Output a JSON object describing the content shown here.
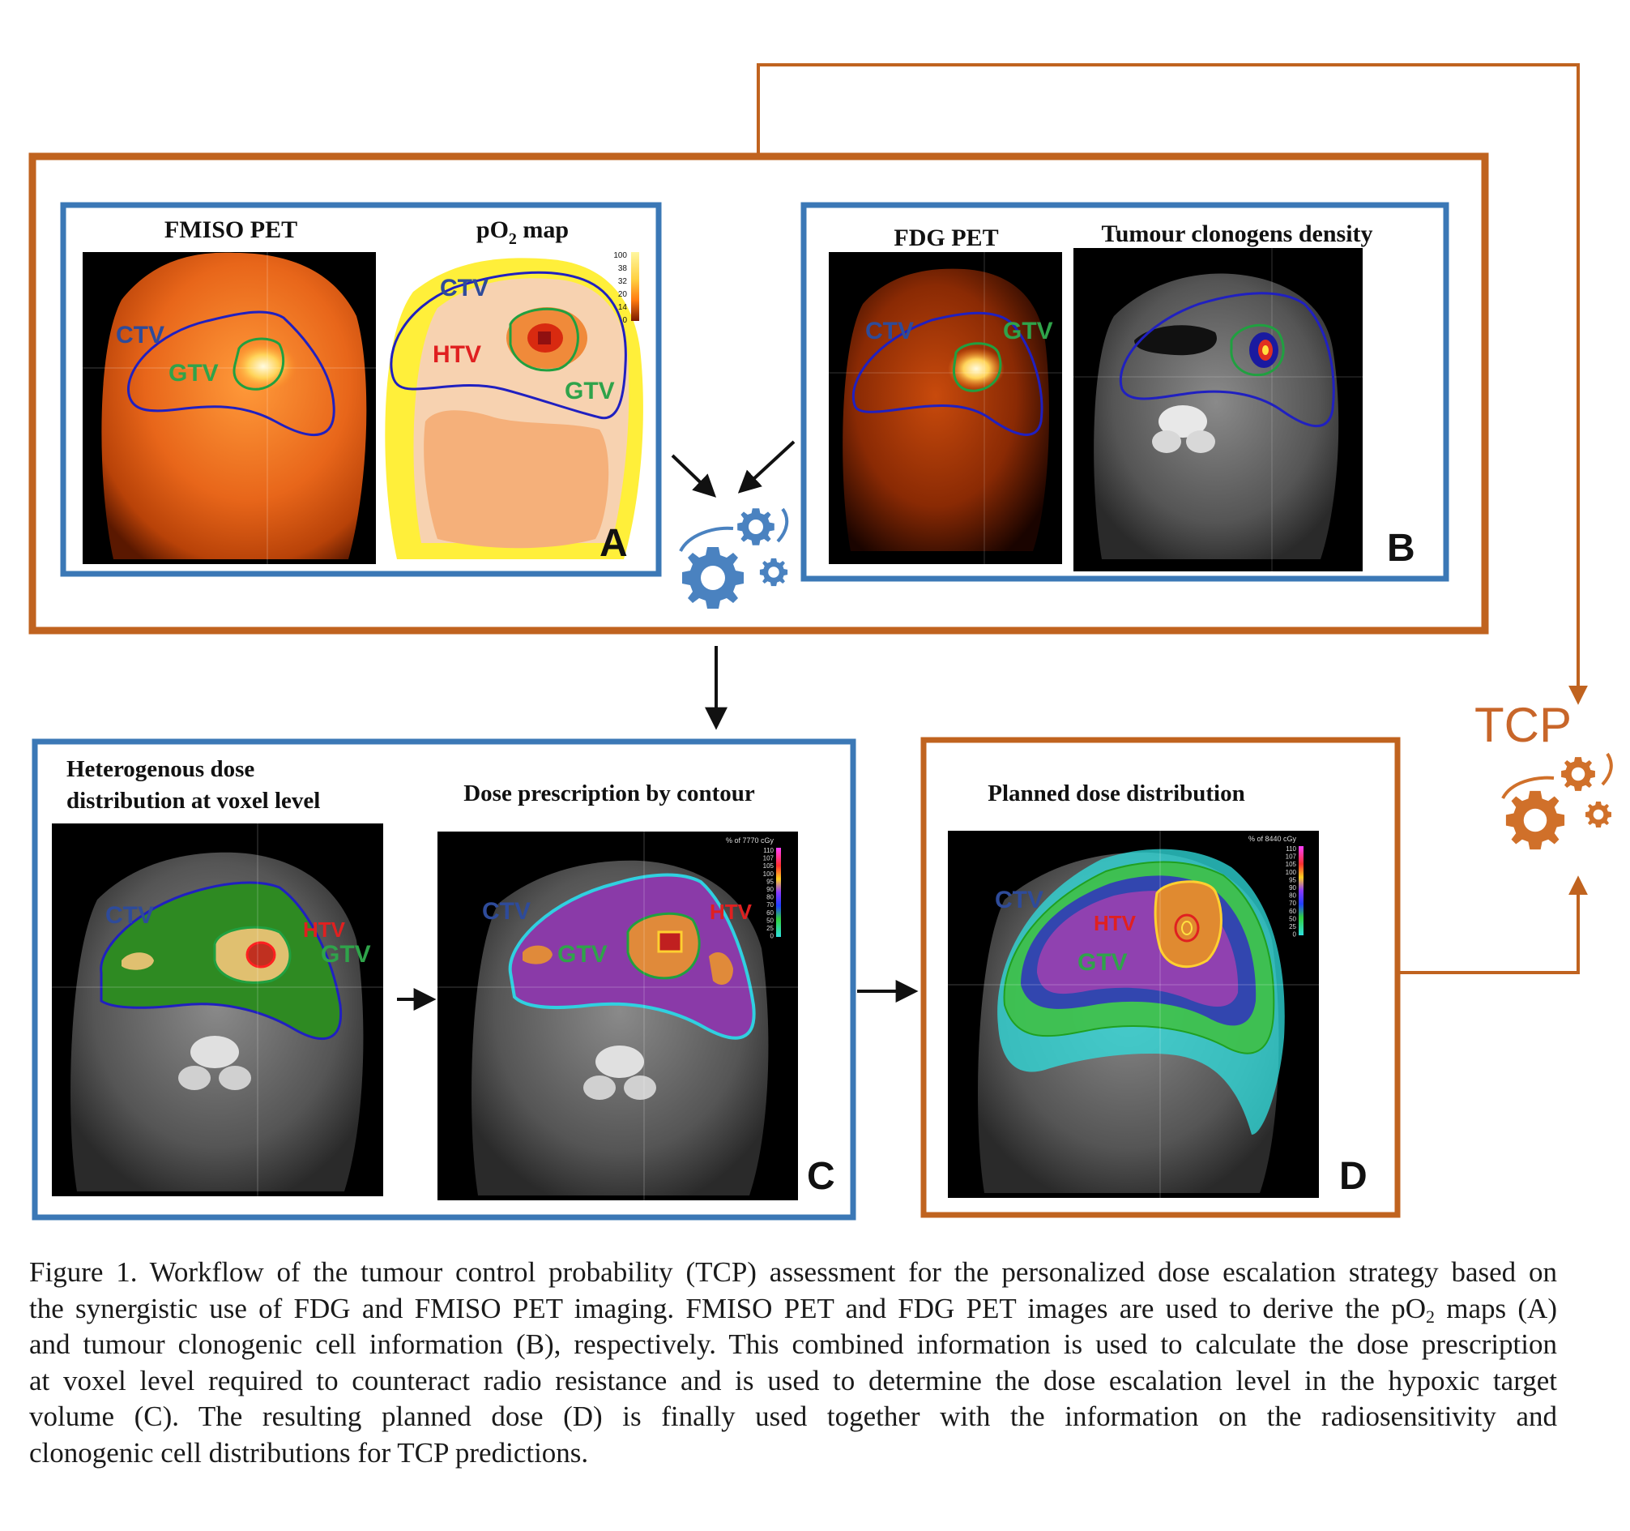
{
  "colors": {
    "orange_frame": "#c0631f",
    "blue_frame": "#3b78b6",
    "gear_blue": "#4a82c0",
    "gear_orange": "#d0702a",
    "ctv_label": "#2e4b9a",
    "gtv_label": "#2fa34a",
    "htv_label": "#e02020",
    "tcp_label": "#c8662a"
  },
  "panel_a": {
    "fmiso_title": "FMISO PET",
    "po2_title_main": "pO",
    "po2_title_sub": "2",
    "po2_title_rest": " map",
    "letter": "A",
    "fmiso_labels": {
      "ctv": "CTV",
      "gtv": "GTV"
    },
    "po2_labels": {
      "ctv": "CTV",
      "htv": "HTV",
      "gtv": "GTV"
    },
    "colorbar_ticks": [
      "100",
      "38",
      "32",
      "20",
      "14",
      "0"
    ]
  },
  "panel_b": {
    "fdg_title": "FDG PET",
    "clonogen_title": "Tumour clonogens density",
    "letter": "B",
    "fdg_labels": {
      "ctv": "CTV",
      "gtv": "GTV"
    }
  },
  "panel_c": {
    "heterogenous_title_1": "Heterogenous dose",
    "heterogenous_title_2": "distribution at voxel level",
    "prescription_title": "Dose prescription by contour",
    "letter": "C",
    "het_labels": {
      "ctv": "CTV",
      "htv": "HTV",
      "gtv": "GTV"
    },
    "presc_labels": {
      "ctv": "CTV",
      "htv": "HTV",
      "gtv": "GTV"
    },
    "presc_legend_title": "% of 7770 cGy",
    "presc_legend_ticks": [
      "110",
      "107",
      "105",
      "100",
      "95",
      "90",
      "80",
      "70",
      "60",
      "50",
      "25",
      "0"
    ]
  },
  "panel_d": {
    "planned_title": "Planned dose distribution",
    "letter": "D",
    "labels": {
      "ctv": "CTV",
      "htv": "HTV",
      "gtv": "GTV"
    },
    "legend_title": "% of 8440 cGy",
    "legend_ticks": [
      "110",
      "107",
      "105",
      "100",
      "95",
      "90",
      "80",
      "70",
      "60",
      "50",
      "25",
      "0"
    ]
  },
  "tcp": {
    "label": "TCP"
  },
  "caption": {
    "lines": [
      "Figure 1. Workflow of the tumour control probability (TCP) assessment for the personalized dose escalation strategy based on",
      "the synergistic use of FDG and FMISO PET imaging. FMISO PET and FDG PET images are used to derive the pO",
      "and tumour clonogenic cell information (B), respectively. This combined information is used to calculate the dose prescription",
      "at voxel level required to counteract radio resistance and is used to determine the dose escalation level in the hypoxic target",
      "volume (C). The resulting planned dose (D) is finally used together with the information on the radiosensitivity and",
      "clonogenic cell distributions for TCP predictions."
    ],
    "line2_sub": "2",
    "line2_tail": " maps (A)"
  }
}
